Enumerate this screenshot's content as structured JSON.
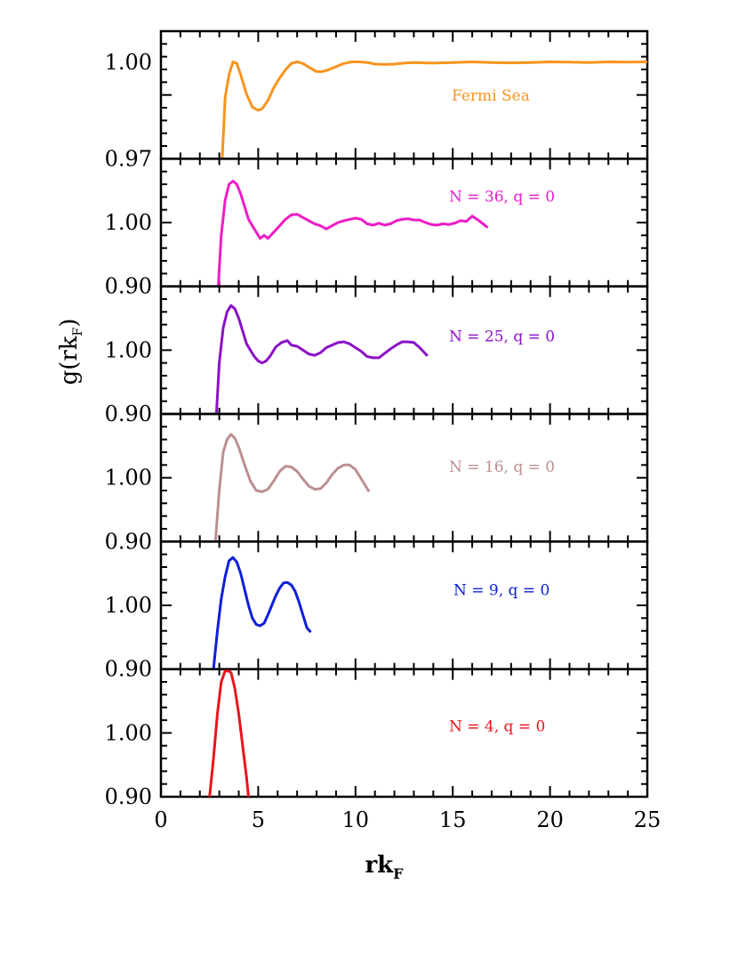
{
  "chart_data": {
    "type": "line",
    "xlabel_main": "rk",
    "xlabel_sub": "F",
    "ylabel_main": "g(rk",
    "ylabel_sub": "F",
    "ylabel_close": ")",
    "xlim": [
      0,
      25
    ],
    "x_ticks": [
      0,
      5,
      10,
      15,
      20,
      25
    ],
    "x_tick_labels": [
      "0",
      "5",
      "10",
      "15",
      "20",
      "25"
    ],
    "panels": [
      {
        "label": "Fermi Sea",
        "color": "#f7941d",
        "y_tick_labels": [
          {
            "text": "1.00",
            "value": 1.0
          },
          {
            "text": "0.97",
            "value": 0.97
          }
        ],
        "ylim": [
          0.97,
          1.0095
        ],
        "x": [
          3.15,
          3.3,
          3.5,
          3.7,
          3.9,
          4.1,
          4.4,
          4.7,
          5.0,
          5.2,
          5.5,
          5.8,
          6.1,
          6.4,
          6.7,
          7.0,
          7.3,
          7.7,
          8.0,
          8.3,
          8.6,
          9.0,
          9.4,
          9.8,
          10.2,
          10.6,
          11.0,
          11.5,
          12.0,
          12.5,
          13.0,
          13.5,
          14.0,
          15.0,
          16.0,
          17.0,
          18.0,
          19.0,
          20.0,
          21.0,
          22.0,
          23.0,
          24.0,
          25.0
        ],
        "y": [
          0.97,
          0.989,
          0.996,
          1.0,
          0.9995,
          0.996,
          0.99,
          0.986,
          0.985,
          0.9855,
          0.988,
          0.992,
          0.995,
          0.9975,
          0.9995,
          1.0,
          0.9995,
          0.998,
          0.997,
          0.997,
          0.9975,
          0.9985,
          0.9995,
          1.0,
          1.0,
          0.9998,
          0.9993,
          0.9992,
          0.9993,
          0.9996,
          0.9998,
          0.9997,
          0.9996,
          0.9998,
          1.0,
          0.9998,
          0.9997,
          0.9998,
          1.0,
          0.9999,
          0.9998,
          1.0,
          0.9999,
          1.0
        ]
      },
      {
        "label": "N = 36, q = 0",
        "color": "#ee1cc5",
        "y_tick_labels": [
          {
            "text": "1.00",
            "value": 1.0
          },
          {
            "text": "0.90",
            "value": 0.9
          }
        ],
        "ylim": [
          0.9,
          1.1
        ],
        "x": [
          2.95,
          3.1,
          3.3,
          3.5,
          3.7,
          3.9,
          4.1,
          4.3,
          4.5,
          4.8,
          5.1,
          5.3,
          5.5,
          5.8,
          6.1,
          6.4,
          6.7,
          7.0,
          7.3,
          7.6,
          7.9,
          8.2,
          8.5,
          8.8,
          9.1,
          9.4,
          9.7,
          10.0,
          10.3,
          10.6,
          10.9,
          11.2,
          11.5,
          11.8,
          12.1,
          12.4,
          12.7,
          13.0,
          13.3,
          13.6,
          13.9,
          14.2,
          14.5,
          14.8,
          15.1,
          15.4,
          15.7,
          16.0,
          16.3,
          16.8
        ],
        "y": [
          0.9,
          0.98,
          1.035,
          1.06,
          1.065,
          1.06,
          1.045,
          1.025,
          1.005,
          0.99,
          0.975,
          0.98,
          0.975,
          0.985,
          0.995,
          1.005,
          1.012,
          1.013,
          1.008,
          1.003,
          0.998,
          0.995,
          0.99,
          0.995,
          1.0,
          1.003,
          1.005,
          1.007,
          1.005,
          0.998,
          0.996,
          0.999,
          0.996,
          0.998,
          1.003,
          1.005,
          1.006,
          1.004,
          1.004,
          1.0,
          0.997,
          0.996,
          0.998,
          0.997,
          0.999,
          1.003,
          1.002,
          1.01,
          1.004,
          0.992
        ]
      },
      {
        "label": "N = 25, q = 0",
        "color": "#8b12c7",
        "y_tick_labels": [
          {
            "text": "1.00",
            "value": 1.0
          },
          {
            "text": "0.90",
            "value": 0.9
          }
        ],
        "ylim": [
          0.9,
          1.1
        ],
        "x": [
          2.85,
          3.0,
          3.2,
          3.4,
          3.6,
          3.8,
          4.0,
          4.2,
          4.4,
          4.6,
          4.8,
          5.0,
          5.2,
          5.4,
          5.6,
          5.9,
          6.2,
          6.5,
          6.7,
          7.0,
          7.3,
          7.6,
          7.9,
          8.2,
          8.5,
          8.8,
          9.1,
          9.4,
          9.7,
          10.0,
          10.3,
          10.6,
          10.9,
          11.2,
          11.5,
          11.8,
          12.1,
          12.4,
          12.7,
          13.0,
          13.3,
          13.7
        ],
        "y": [
          0.9,
          0.98,
          1.035,
          1.06,
          1.07,
          1.065,
          1.05,
          1.03,
          1.01,
          1.0,
          0.99,
          0.983,
          0.98,
          0.983,
          0.99,
          1.005,
          1.012,
          1.015,
          1.008,
          1.006,
          1.0,
          0.994,
          0.992,
          0.996,
          1.004,
          1.008,
          1.012,
          1.013,
          1.01,
          1.004,
          0.998,
          0.99,
          0.988,
          0.988,
          0.995,
          1.002,
          1.008,
          1.013,
          1.013,
          1.012,
          1.004,
          0.991
        ]
      },
      {
        "label": "N = 16, q = 0",
        "color": "#bc8f8f",
        "y_tick_labels": [
          {
            "text": "1.00",
            "value": 1.0
          },
          {
            "text": "0.90",
            "value": 0.9
          }
        ],
        "ylim": [
          0.9,
          1.1
        ],
        "x": [
          2.8,
          3.0,
          3.2,
          3.4,
          3.6,
          3.8,
          4.0,
          4.3,
          4.6,
          4.9,
          5.2,
          5.5,
          5.8,
          6.1,
          6.4,
          6.7,
          7.0,
          7.3,
          7.6,
          7.9,
          8.2,
          8.5,
          8.8,
          9.1,
          9.4,
          9.7,
          10.0,
          10.3,
          10.7
        ],
        "y": [
          0.9,
          0.98,
          1.04,
          1.06,
          1.068,
          1.062,
          1.048,
          1.02,
          0.995,
          0.98,
          0.978,
          0.982,
          0.995,
          1.01,
          1.018,
          1.017,
          1.01,
          0.998,
          0.987,
          0.982,
          0.983,
          0.992,
          1.005,
          1.015,
          1.02,
          1.02,
          1.013,
          0.998,
          0.978
        ]
      },
      {
        "label": "N = 9, q = 0",
        "color": "#0d1fd6",
        "y_tick_labels": [
          {
            "text": "1.00",
            "value": 1.0
          },
          {
            "text": "0.90",
            "value": 0.9
          }
        ],
        "ylim": [
          0.9,
          1.1
        ],
        "x": [
          2.7,
          2.9,
          3.1,
          3.3,
          3.5,
          3.7,
          3.9,
          4.1,
          4.3,
          4.5,
          4.7,
          4.9,
          5.1,
          5.3,
          5.5,
          5.7,
          5.9,
          6.1,
          6.3,
          6.5,
          6.7,
          6.9,
          7.1,
          7.3,
          7.5,
          7.7
        ],
        "y": [
          0.9,
          0.96,
          1.01,
          1.045,
          1.07,
          1.075,
          1.068,
          1.05,
          1.025,
          1.0,
          0.98,
          0.97,
          0.968,
          0.972,
          0.985,
          1.0,
          1.015,
          1.027,
          1.035,
          1.036,
          1.032,
          1.022,
          1.005,
          0.985,
          0.965,
          0.958
        ]
      },
      {
        "label": "N = 4, q = 0",
        "color": "#e8141c",
        "y_tick_labels": [
          {
            "text": "1.00",
            "value": 1.0
          },
          {
            "text": "0.90",
            "value": 0.9
          }
        ],
        "ylim": [
          0.9,
          1.1
        ],
        "x": [
          2.5,
          2.7,
          2.9,
          3.1,
          3.3,
          3.45,
          3.6,
          3.8,
          4.0,
          4.2,
          4.4,
          4.5
        ],
        "y": [
          0.9,
          0.96,
          1.03,
          1.08,
          1.1,
          1.1,
          1.095,
          1.07,
          1.03,
          0.98,
          0.93,
          0.9
        ]
      }
    ]
  }
}
